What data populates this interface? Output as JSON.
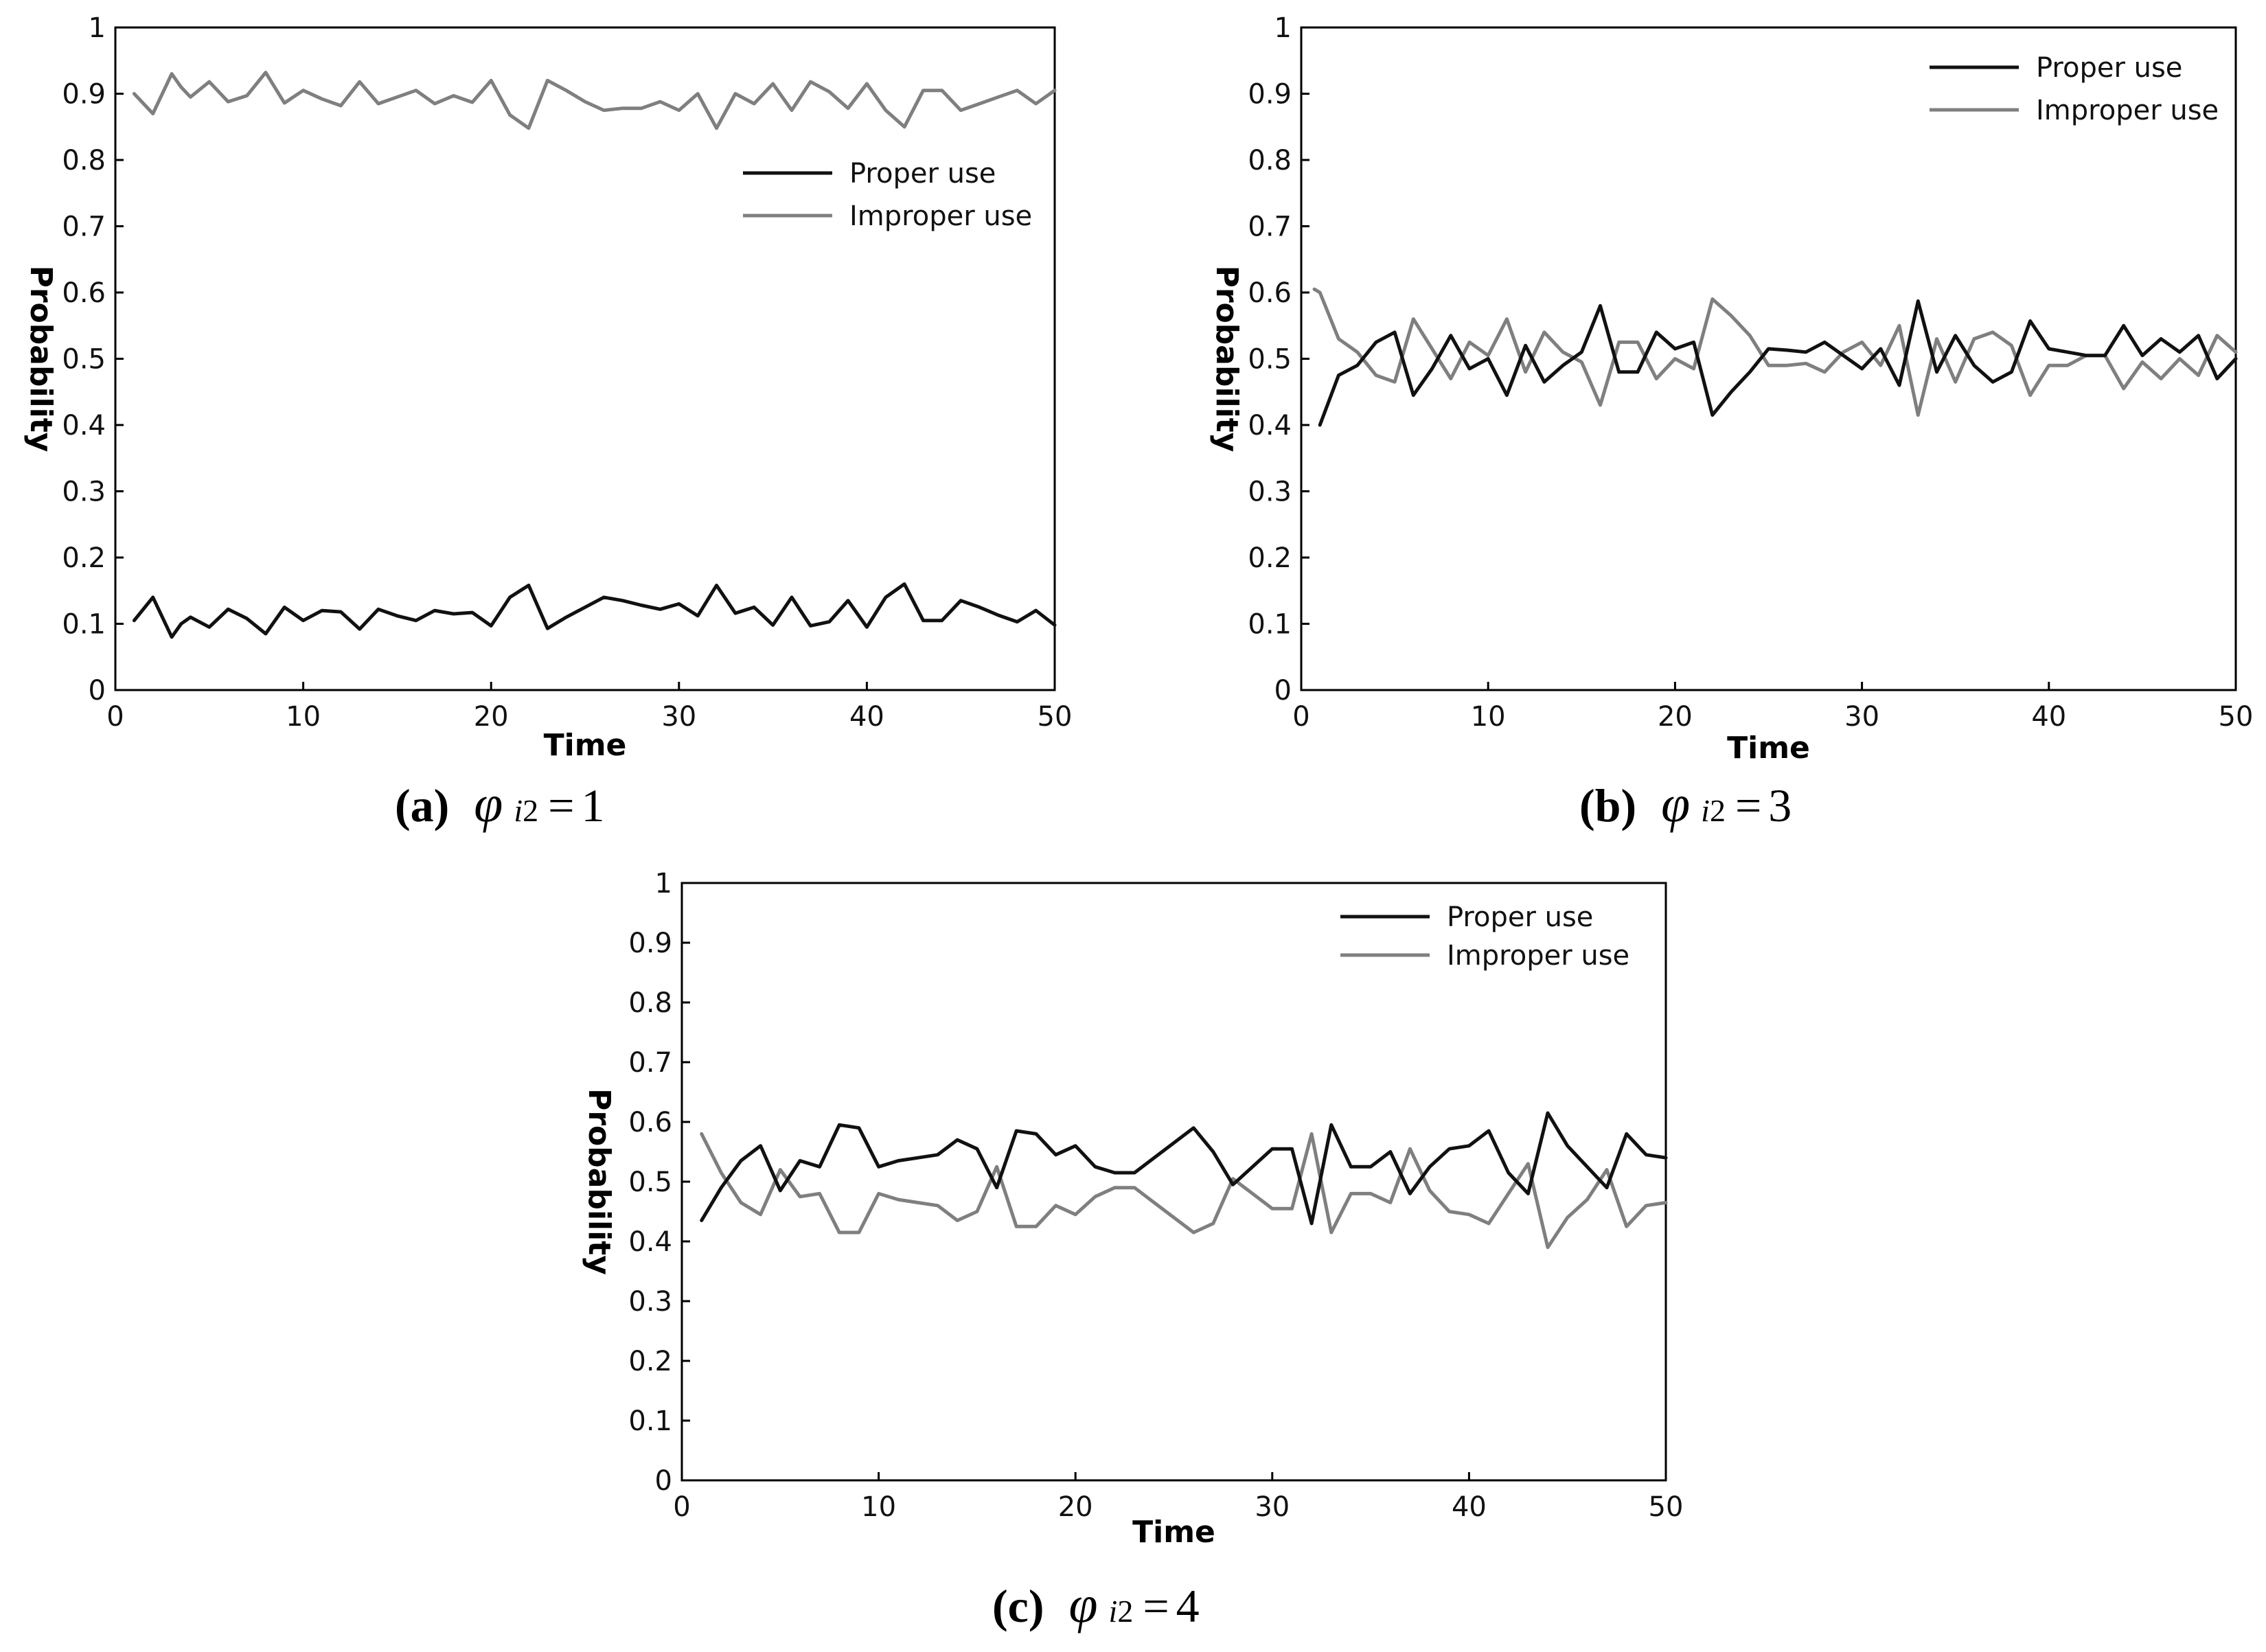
{
  "chart_data": [
    {
      "type": "line",
      "panel": "a",
      "caption": {
        "letter": "(a)",
        "symbol": "φ",
        "sub_var": "i",
        "sub_num": "2",
        "equals": "=",
        "value": "1"
      },
      "xlabel": "Time",
      "ylabel": "Probability",
      "xlim": [
        0,
        50
      ],
      "ylim": [
        0,
        1
      ],
      "xticks": [
        0,
        10,
        20,
        30,
        40,
        50
      ],
      "yticks": [
        0,
        0.1,
        0.2,
        0.3,
        0.4,
        0.5,
        0.6,
        0.7,
        0.8,
        0.9,
        1
      ],
      "ytick_labels": [
        "0",
        "0.1",
        "0.2",
        "0.3",
        "0.4",
        "0.5",
        "0.6",
        "0.7",
        "0.8",
        "0.9",
        "1"
      ],
      "grid": false,
      "legend_position": "upper-right-middle",
      "series": [
        {
          "name": "Proper use",
          "color": "#111111",
          "x": [
            1,
            2,
            3,
            3.5,
            4,
            5,
            6,
            7,
            8,
            9,
            10,
            11,
            12,
            13,
            14,
            15,
            16,
            17,
            18,
            19,
            20,
            21,
            22,
            23,
            24,
            25,
            26,
            27,
            28,
            29,
            30,
            31,
            32,
            33,
            34,
            35,
            36,
            37,
            38,
            39,
            40,
            41,
            42,
            43,
            44,
            45,
            46,
            47,
            48,
            49,
            50
          ],
          "y": [
            0.105,
            0.14,
            0.08,
            0.1,
            0.11,
            0.095,
            0.122,
            0.108,
            0.085,
            0.125,
            0.105,
            0.12,
            0.118,
            0.092,
            0.122,
            0.112,
            0.105,
            0.12,
            0.115,
            0.117,
            0.097,
            0.14,
            0.158,
            0.093,
            0.11,
            0.125,
            0.14,
            0.135,
            0.128,
            0.122,
            0.13,
            0.112,
            0.158,
            0.116,
            0.125,
            0.098,
            0.14,
            0.097,
            0.103,
            0.135,
            0.095,
            0.14,
            0.16,
            0.105,
            0.105,
            0.135,
            0.125,
            0.113,
            0.103,
            0.12,
            0.098
          ]
        },
        {
          "name": "Improper use",
          "color": "#7f7f7f",
          "x": [
            1,
            2,
            3,
            3.5,
            4,
            5,
            6,
            7,
            8,
            9,
            10,
            11,
            12,
            13,
            14,
            15,
            16,
            17,
            18,
            19,
            20,
            21,
            22,
            23,
            24,
            25,
            26,
            27,
            28,
            29,
            30,
            31,
            32,
            33,
            34,
            35,
            36,
            37,
            38,
            39,
            40,
            41,
            42,
            43,
            44,
            45,
            46,
            47,
            48,
            49,
            50
          ],
          "y": [
            0.9,
            0.87,
            0.93,
            0.91,
            0.895,
            0.918,
            0.888,
            0.897,
            0.932,
            0.886,
            0.905,
            0.892,
            0.882,
            0.918,
            0.885,
            0.895,
            0.905,
            0.885,
            0.897,
            0.887,
            0.92,
            0.868,
            0.848,
            0.92,
            0.905,
            0.888,
            0.875,
            0.878,
            0.878,
            0.888,
            0.875,
            0.9,
            0.848,
            0.9,
            0.885,
            0.915,
            0.875,
            0.918,
            0.903,
            0.878,
            0.915,
            0.875,
            0.85,
            0.905,
            0.905,
            0.875,
            0.885,
            0.895,
            0.905,
            0.885,
            0.905
          ]
        }
      ]
    },
    {
      "type": "line",
      "panel": "b",
      "caption": {
        "letter": "(b)",
        "symbol": "φ",
        "sub_var": "i",
        "sub_num": "2",
        "equals": "=",
        "value": "3"
      },
      "xlabel": "Time",
      "ylabel": "Probability",
      "xlim": [
        0,
        50
      ],
      "ylim": [
        0,
        1
      ],
      "xticks": [
        0,
        10,
        20,
        30,
        40,
        50
      ],
      "yticks": [
        0,
        0.1,
        0.2,
        0.3,
        0.4,
        0.5,
        0.6,
        0.7,
        0.8,
        0.9,
        1
      ],
      "ytick_labels": [
        "0",
        "0.1",
        "0.2",
        "0.3",
        "0.4",
        "0.5",
        "0.6",
        "0.7",
        "0.8",
        "0.9",
        "1"
      ],
      "grid": false,
      "legend_position": "top-right",
      "series": [
        {
          "name": "Proper use",
          "color": "#111111",
          "x": [
            1,
            2,
            3,
            4,
            5,
            6,
            7,
            8,
            9,
            10,
            11,
            12,
            13,
            14,
            15,
            16,
            17,
            18,
            19,
            20,
            21,
            22,
            23,
            24,
            25,
            26,
            27,
            28,
            29,
            30,
            31,
            32,
            33,
            34,
            35,
            36,
            37,
            38,
            39,
            40,
            41,
            42,
            43,
            44,
            45,
            46,
            47,
            48,
            49,
            50
          ],
          "y": [
            0.4,
            0.475,
            0.49,
            0.525,
            0.54,
            0.445,
            0.485,
            0.535,
            0.485,
            0.5,
            0.445,
            0.52,
            0.465,
            0.49,
            0.51,
            0.58,
            0.48,
            0.48,
            0.54,
            0.515,
            0.525,
            0.415,
            0.45,
            0.48,
            0.515,
            0.513,
            0.51,
            0.525,
            0.505,
            0.485,
            0.515,
            0.46,
            0.587,
            0.48,
            0.535,
            0.49,
            0.465,
            0.48,
            0.557,
            0.515,
            0.51,
            0.505,
            0.505,
            0.55,
            0.505,
            0.53,
            0.51,
            0.535,
            0.47,
            0.5
          ]
        },
        {
          "name": "Improper use",
          "color": "#7f7f7f",
          "x": [
            0.7,
            1,
            2,
            3,
            4,
            5,
            6,
            7,
            8,
            9,
            10,
            11,
            12,
            13,
            14,
            15,
            16,
            17,
            18,
            19,
            20,
            21,
            22,
            23,
            24,
            25,
            26,
            27,
            28,
            29,
            30,
            31,
            32,
            33,
            34,
            35,
            36,
            37,
            38,
            39,
            40,
            41,
            42,
            43,
            44,
            45,
            46,
            47,
            48,
            49,
            50
          ],
          "y": [
            0.605,
            0.6,
            0.53,
            0.51,
            0.475,
            0.465,
            0.56,
            0.515,
            0.47,
            0.525,
            0.505,
            0.56,
            0.48,
            0.54,
            0.51,
            0.495,
            0.43,
            0.525,
            0.525,
            0.47,
            0.5,
            0.485,
            0.59,
            0.565,
            0.535,
            0.49,
            0.49,
            0.493,
            0.48,
            0.51,
            0.525,
            0.49,
            0.55,
            0.415,
            0.53,
            0.465,
            0.53,
            0.54,
            0.52,
            0.445,
            0.49,
            0.49,
            0.505,
            0.505,
            0.455,
            0.495,
            0.47,
            0.5,
            0.475,
            0.535,
            0.51
          ]
        }
      ]
    },
    {
      "type": "line",
      "panel": "c",
      "caption": {
        "letter": "(c)",
        "symbol": "φ",
        "sub_var": "i",
        "sub_num": "2",
        "equals": "=",
        "value": "4"
      },
      "xlabel": "Time",
      "ylabel": "Probability",
      "xlim": [
        0,
        50
      ],
      "ylim": [
        0,
        1
      ],
      "xticks": [
        0,
        10,
        20,
        30,
        40,
        50
      ],
      "yticks": [
        0,
        0.1,
        0.2,
        0.3,
        0.4,
        0.5,
        0.6,
        0.7,
        0.8,
        0.9,
        1
      ],
      "ytick_labels": [
        "0",
        "0.1",
        "0.2",
        "0.3",
        "0.4",
        "0.5",
        "0.6",
        "0.7",
        "0.8",
        "0.9",
        "1"
      ],
      "grid": false,
      "legend_position": "top-right",
      "series": [
        {
          "name": "Proper use",
          "color": "#111111",
          "x": [
            1,
            2,
            3,
            4,
            5,
            6,
            7,
            8,
            9,
            10,
            11,
            12,
            13,
            14,
            15,
            16,
            17,
            18,
            19,
            20,
            21,
            22,
            23,
            24,
            25,
            26,
            27,
            28,
            29,
            30,
            31,
            32,
            33,
            34,
            35,
            36,
            37,
            38,
            39,
            40,
            41,
            42,
            43,
            44,
            45,
            46,
            47,
            48,
            49,
            50
          ],
          "y": [
            0.435,
            0.49,
            0.535,
            0.56,
            0.485,
            0.535,
            0.525,
            0.595,
            0.59,
            0.525,
            0.535,
            0.54,
            0.545,
            0.57,
            0.555,
            0.49,
            0.585,
            0.58,
            0.545,
            0.56,
            0.525,
            0.515,
            0.515,
            0.54,
            0.565,
            0.59,
            0.55,
            0.495,
            0.525,
            0.555,
            0.555,
            0.43,
            0.595,
            0.525,
            0.525,
            0.55,
            0.48,
            0.525,
            0.555,
            0.56,
            0.585,
            0.515,
            0.48,
            0.615,
            0.56,
            0.525,
            0.49,
            0.58,
            0.545,
            0.54
          ]
        },
        {
          "name": "Improper use",
          "color": "#7f7f7f",
          "x": [
            1,
            2,
            3,
            4,
            5,
            6,
            7,
            8,
            9,
            10,
            11,
            12,
            13,
            14,
            15,
            16,
            17,
            18,
            19,
            20,
            21,
            22,
            23,
            24,
            25,
            26,
            27,
            28,
            29,
            30,
            31,
            32,
            33,
            34,
            35,
            36,
            37,
            38,
            39,
            40,
            41,
            42,
            43,
            44,
            45,
            46,
            47,
            48,
            49,
            50
          ],
          "y": [
            0.58,
            0.515,
            0.465,
            0.445,
            0.52,
            0.475,
            0.48,
            0.415,
            0.415,
            0.48,
            0.47,
            0.465,
            0.46,
            0.435,
            0.45,
            0.525,
            0.425,
            0.425,
            0.46,
            0.445,
            0.475,
            0.49,
            0.49,
            0.465,
            0.44,
            0.415,
            0.43,
            0.505,
            0.48,
            0.455,
            0.455,
            0.58,
            0.415,
            0.48,
            0.48,
            0.465,
            0.555,
            0.485,
            0.45,
            0.445,
            0.43,
            0.48,
            0.53,
            0.39,
            0.44,
            0.47,
            0.52,
            0.425,
            0.46,
            0.465
          ]
        }
      ]
    }
  ]
}
